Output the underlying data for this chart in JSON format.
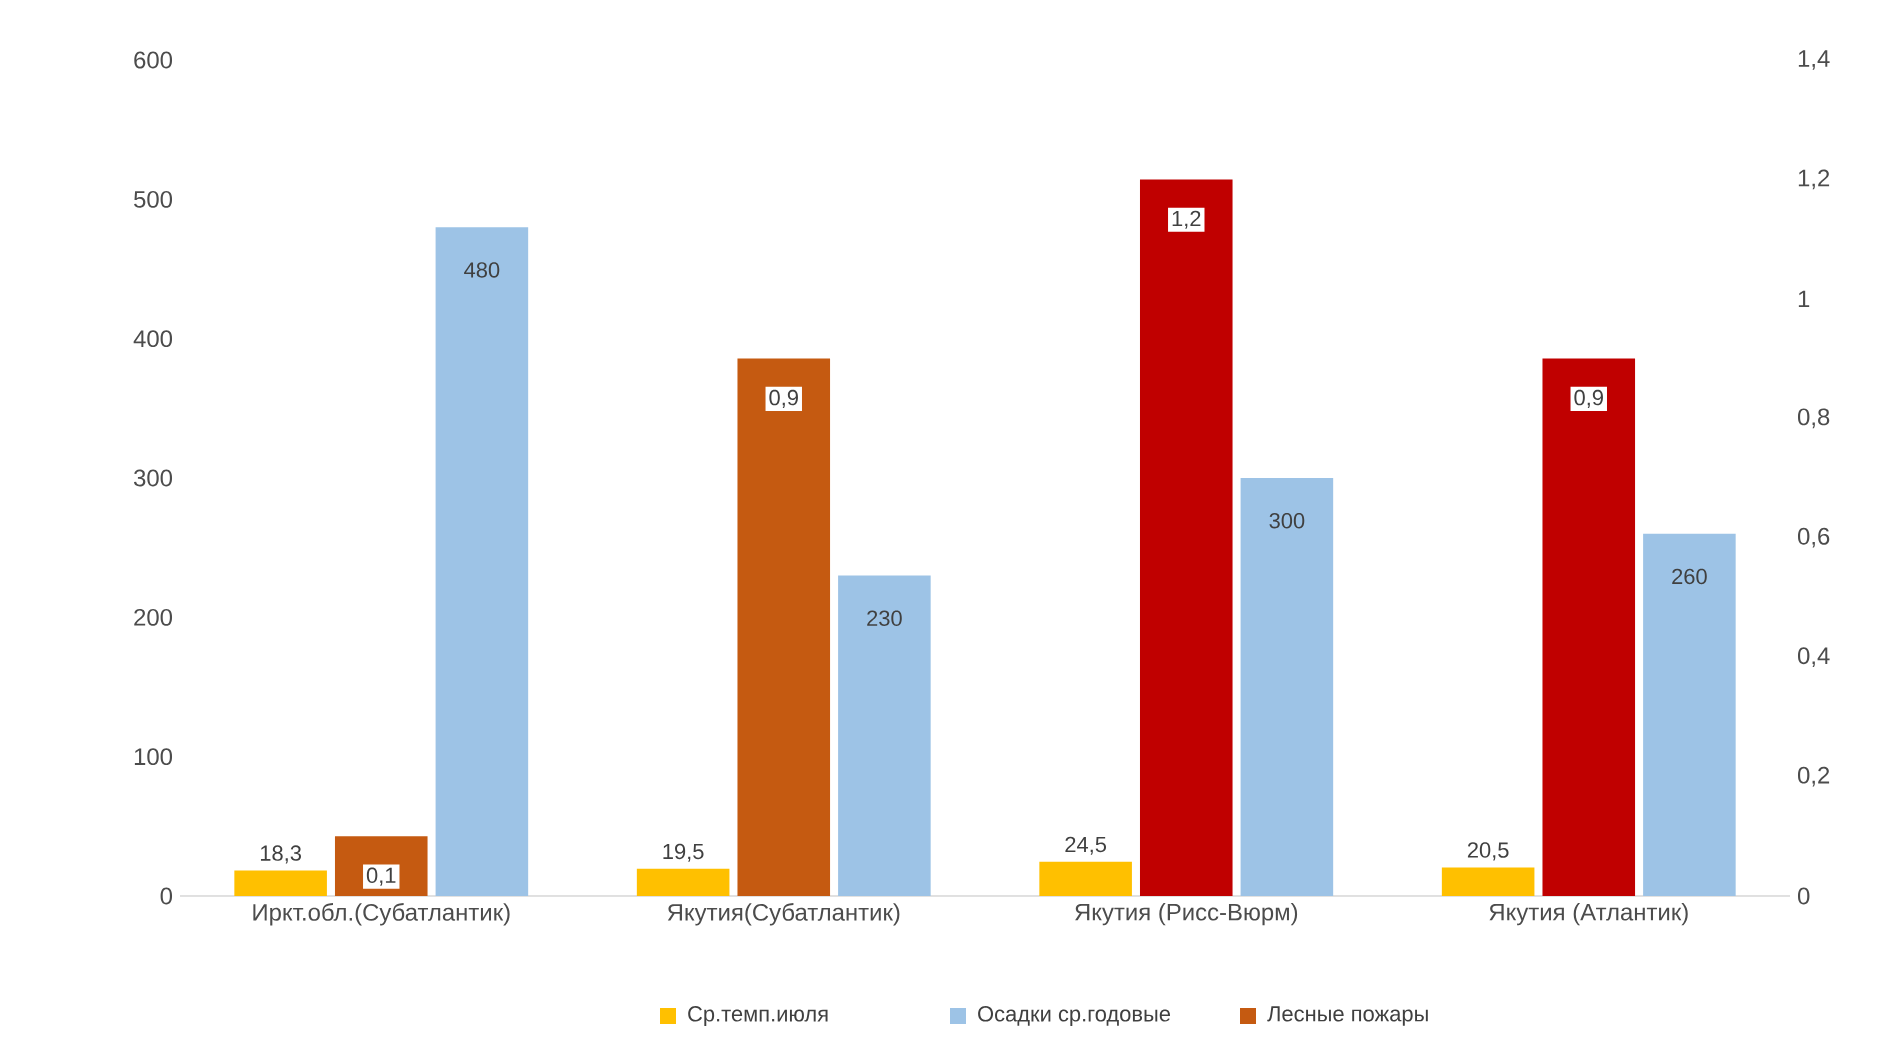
{
  "chart_data": {
    "type": "bar",
    "categories": [
      "Иркт.обл.(Субатлантик)",
      "Якутия(Субатлантик)",
      "Якутия (Рисс-Вюрм)",
      "Якутия (Атлантик)"
    ],
    "series": [
      {
        "name": "Ср.темп.июля",
        "color": "#ffc000",
        "values": [
          18.3,
          19.5,
          24.5,
          20.5
        ],
        "value_labels": [
          "18,3",
          "19,5",
          "24,5",
          "20,5"
        ]
      },
      {
        "name": "Лесные пожары",
        "axis": "y2",
        "colors": [
          "#c55a11",
          "#c55a11",
          "#c00000",
          "#c00000"
        ],
        "values": [
          0.1,
          0.9,
          1.2,
          0.9
        ],
        "value_labels": [
          "0,1",
          "0,9",
          "1,2",
          "0,9"
        ]
      },
      {
        "name": "Осадки ср.годовые",
        "color": "#9dc3e6",
        "values": [
          480,
          230,
          300,
          260
        ],
        "value_labels": [
          "480",
          "230",
          "300",
          "260"
        ]
      }
    ],
    "ylim": [
      0,
      600
    ],
    "yticks": [
      0,
      100,
      200,
      300,
      400,
      500,
      600
    ],
    "y2lim": [
      0,
      1.4
    ],
    "y2ticks": [
      0,
      {
        "value": 0.2,
        "label": "0,2"
      },
      {
        "value": 0.4,
        "label": "0,4"
      },
      {
        "value": 0.6,
        "label": "0,6"
      },
      {
        "value": 0.8,
        "label": "0,8"
      },
      1,
      {
        "value": 1.2,
        "label": "1,2"
      },
      {
        "value": 1.4,
        "label": "1,4"
      }
    ],
    "legend": "bottom"
  }
}
